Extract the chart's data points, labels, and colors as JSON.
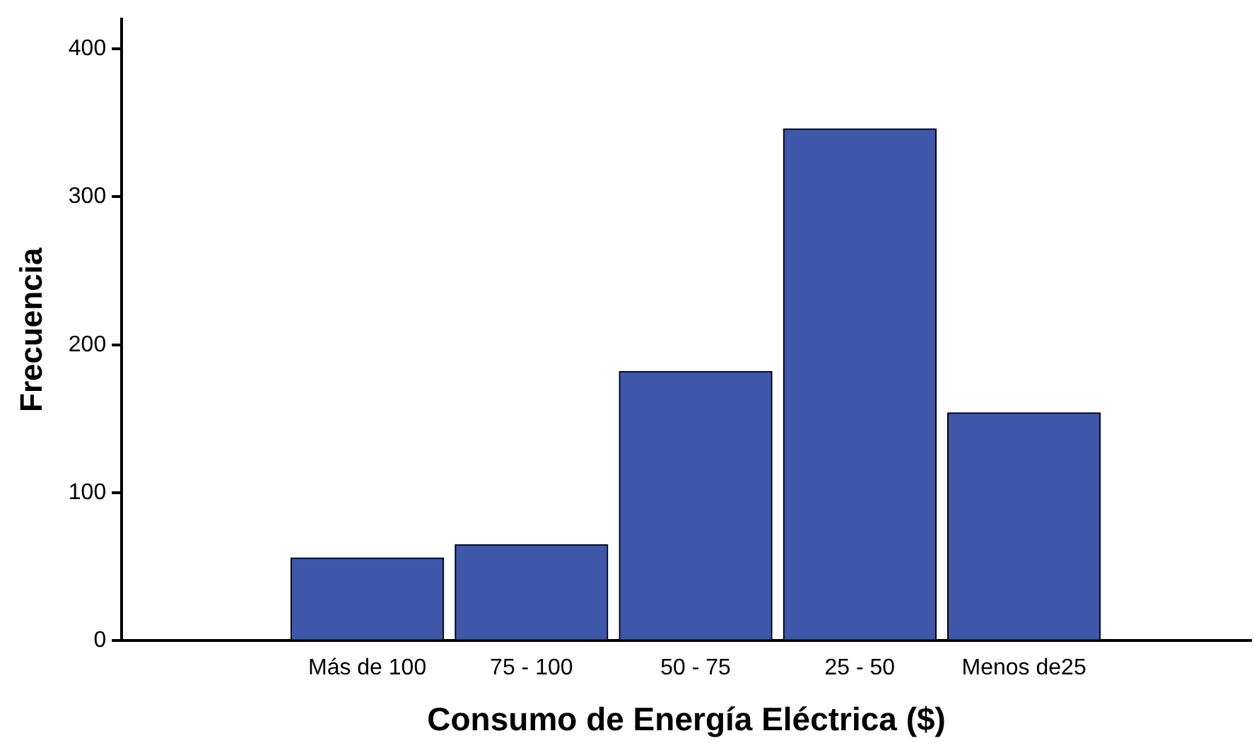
{
  "chart_data": {
    "type": "bar",
    "xlabel": "Consumo de Energía Eléctrica ($)",
    "ylabel": "Frecuencia",
    "categories": [
      "Más de 100",
      "75 - 100",
      "50 - 75",
      "25 - 50",
      "Menos de25"
    ],
    "values": [
      56,
      65,
      182,
      346,
      154
    ],
    "color": "#3f57a9",
    "ylim": [
      0,
      420
    ],
    "yticks": [
      0,
      100,
      200,
      300,
      400
    ],
    "grid": false,
    "legend": false
  }
}
